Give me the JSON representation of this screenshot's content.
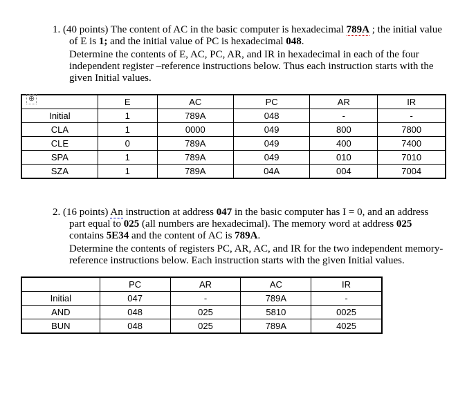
{
  "q1": {
    "number_label": "1.  (40 points)",
    "intro_part1": "The content of AC in the basic computer is hexadecimal ",
    "intro_ac_value": "789A",
    "intro_part2": " ; the initial value of E is ",
    "intro_e_value": "1;",
    "intro_part3": " and the initial value of PC is hexadecimal ",
    "intro_pc_value": "048",
    "intro_part4": ".",
    "para2": "Determine the contents of E, AC, PC, AR, and IR in hexadecimal in each of the four independent register –reference instructions below. Thus each instruction starts with the given Initial values.",
    "anchor_icon": "⊕",
    "table": {
      "columns": [
        "",
        "E",
        "AC",
        "PC",
        "AR",
        "IR"
      ],
      "rows": [
        [
          "Initial",
          "1",
          "789A",
          "048",
          "-",
          "-"
        ],
        [
          "CLA",
          "1",
          "0000",
          "049",
          "800",
          "7800"
        ],
        [
          "CLE",
          "0",
          "789A",
          "049",
          "400",
          "7400"
        ],
        [
          "SPA",
          "1",
          "789A",
          "049",
          "010",
          "7010"
        ],
        [
          "SZA",
          "1",
          "789A",
          "04A",
          "004",
          "7004"
        ]
      ],
      "col_widths": [
        "18%",
        "14%",
        "18%",
        "18%",
        "16%",
        "16%"
      ]
    }
  },
  "q2": {
    "number_label": "2. (16 points)",
    "intro_part1a": "An",
    "intro_part1b": " instruction at address ",
    "intro_addr": "047",
    "intro_part2": " in the basic computer has I = 0, and an address part equal to ",
    "intro_addrpart": "025",
    "intro_part3": " (all numbers are hexadecimal).  The memory word at address ",
    "intro_memaddr": "025",
    "intro_part4": " contains ",
    "intro_memval": "5E34",
    "intro_part5": " and the content of AC is ",
    "intro_ac": "789A",
    "intro_part6": ".",
    "para2": "Determine the contents of registers PC, AR, AC, and IR for the two independent memory-reference instructions below.  Each instruction starts with the given Initial values.",
    "table": {
      "columns": [
        "",
        "PC",
        "AR",
        "AC",
        "IR"
      ],
      "rows": [
        [
          "Initial",
          "047",
          "-",
          "789A",
          "-"
        ],
        [
          "AND",
          "048",
          "025",
          "5810",
          "0025"
        ],
        [
          "BUN",
          "048",
          "025",
          "789A",
          "4025"
        ]
      ],
      "col_widths": [
        "20%",
        "18%",
        "18%",
        "18%",
        "18%"
      ]
    }
  }
}
